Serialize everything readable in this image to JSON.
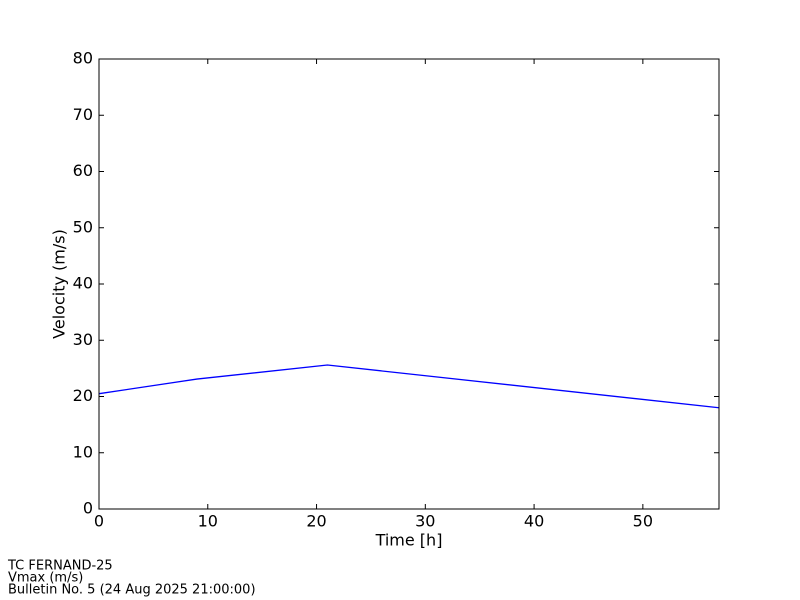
{
  "chart_data": {
    "type": "line",
    "x_label": "Time [h]",
    "y_label": "Velocity (m/s)",
    "x": [
      0,
      9,
      21,
      57
    ],
    "series": [
      {
        "name": "Vmax (m/s)",
        "color": "#0000ff",
        "values": [
          20.5,
          23.1,
          25.6,
          18.0
        ]
      }
    ],
    "xlim": [
      0,
      57
    ],
    "xticks": [
      0,
      10,
      20,
      30,
      40,
      50
    ],
    "ylim": [
      0,
      80
    ],
    "yticks": [
      0,
      10,
      20,
      30,
      40,
      50,
      60,
      70,
      80
    ],
    "grid": false,
    "footer": [
      "TC FERNAND-25",
      "Vmax (m/s)",
      "Bulletin No. 5 (24 Aug 2025  21:00:00)"
    ]
  }
}
